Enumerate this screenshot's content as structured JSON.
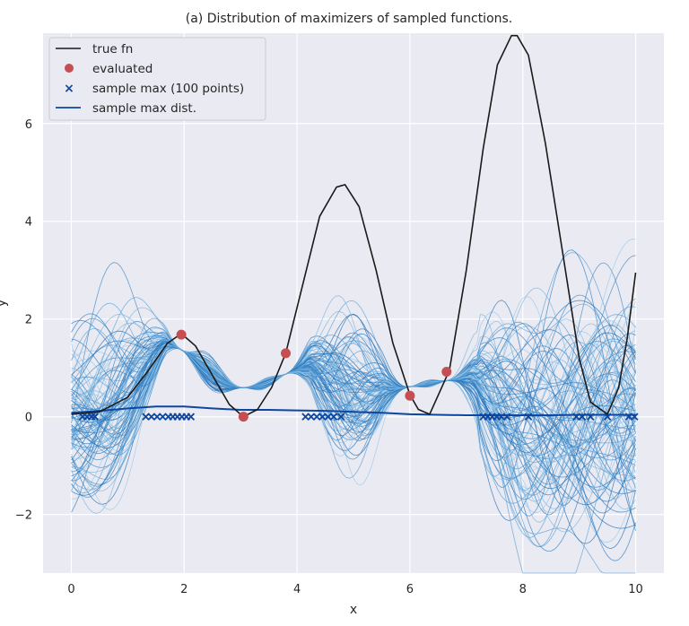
{
  "chart_data": {
    "type": "line",
    "title": "(a) Distribution of maximizers of sampled functions.",
    "xlabel": "x",
    "ylabel": "y",
    "xlim": [
      -0.5,
      10.5
    ],
    "ylim": [
      -3.2,
      7.85
    ],
    "xticks": [
      0,
      2,
      4,
      6,
      8,
      10
    ],
    "yticks": [
      -2,
      0,
      2,
      4,
      6
    ],
    "grid": true,
    "legend_position": "top-left",
    "colors": {
      "background": "#eaeaf2",
      "grid": "#ffffff",
      "true_fn": "#1a1a1a",
      "evaluated": "#c44e52",
      "sample_max": "#0d47a1",
      "sample_max_dist": "#0d47a1",
      "sample_paths": "#4a90c8"
    },
    "legend": [
      {
        "label": "true fn",
        "marker": "line",
        "color": "#1a1a1a"
      },
      {
        "label": "evaluated",
        "marker": "dot",
        "color": "#c44e52"
      },
      {
        "label": "sample max (100 points)",
        "marker": "x",
        "color": "#0d47a1"
      },
      {
        "label": "sample max dist.",
        "marker": "line",
        "color": "#0d47a1"
      }
    ],
    "series": [
      {
        "name": "true fn",
        "x": [
          0,
          0.5,
          1.0,
          1.4,
          1.7,
          1.95,
          2.2,
          2.5,
          2.8,
          3.05,
          3.3,
          3.55,
          3.8,
          4.1,
          4.4,
          4.7,
          4.85,
          5.1,
          5.4,
          5.7,
          6.0,
          6.15,
          6.35,
          6.7,
          7.0,
          7.3,
          7.55,
          7.8,
          7.9,
          8.1,
          8.4,
          8.7,
          9.0,
          9.2,
          9.5,
          9.7,
          9.85,
          10.0
        ],
        "y": [
          0.05,
          0.1,
          0.4,
          1.0,
          1.5,
          1.7,
          1.45,
          0.85,
          0.25,
          0.0,
          0.15,
          0.6,
          1.3,
          2.7,
          4.1,
          4.7,
          4.75,
          4.3,
          3.0,
          1.5,
          0.45,
          0.15,
          0.05,
          0.95,
          3.0,
          5.5,
          7.2,
          7.8,
          7.8,
          7.4,
          5.6,
          3.4,
          1.2,
          0.3,
          0.05,
          0.6,
          1.6,
          2.95
        ]
      },
      {
        "name": "sample max dist.",
        "x": [
          0,
          0.5,
          1.0,
          1.5,
          2.0,
          2.5,
          3.0,
          3.5,
          4.0,
          4.5,
          5.0,
          5.5,
          6.0,
          6.5,
          7.0,
          7.5,
          8.0,
          8.5,
          9.0,
          9.5,
          10.0
        ],
        "y": [
          0.08,
          0.12,
          0.17,
          0.21,
          0.21,
          0.17,
          0.14,
          0.14,
          0.13,
          0.12,
          0.1,
          0.08,
          0.05,
          0.04,
          0.03,
          0.03,
          0.03,
          0.03,
          0.04,
          0.04,
          0.04
        ]
      }
    ],
    "evaluated": {
      "x": [
        1.95,
        3.05,
        3.8,
        6.0,
        6.65
      ],
      "y": [
        1.68,
        0.0,
        1.3,
        0.43,
        0.92
      ]
    },
    "sample_max_points": {
      "y": 0.0,
      "x": [
        0.2,
        0.28,
        0.36,
        0.42,
        1.32,
        1.42,
        1.52,
        1.62,
        1.72,
        1.8,
        1.88,
        1.96,
        2.04,
        2.12,
        4.15,
        4.25,
        4.35,
        4.45,
        4.55,
        4.65,
        4.78,
        7.3,
        7.38,
        7.46,
        7.54,
        7.62,
        7.72,
        8.1,
        8.95,
        9.05,
        9.2,
        9.5,
        9.88,
        9.98
      ]
    },
    "sample_paths_count": 100
  }
}
